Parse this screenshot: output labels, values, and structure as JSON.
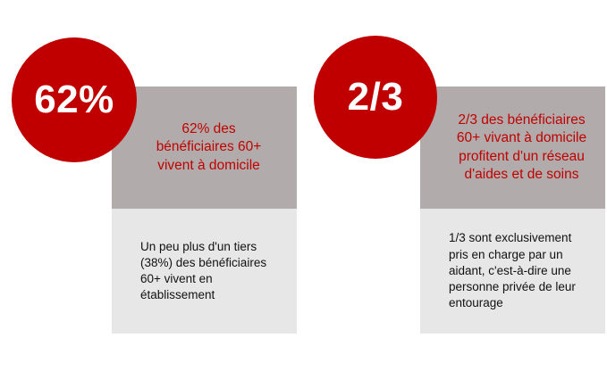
{
  "cards": [
    {
      "badge": "62%",
      "headline": "62% des bénéficiaires 60+ vivent à domicile",
      "detail": "Un peu plus d'un tiers (38%) des bénéficiaires 60+ vivent en établissement"
    },
    {
      "badge": "2/3",
      "headline": "2/3 des bénéficiaires 60+ vivant à domicile profitent d'un réseau d'aides et de soins",
      "detail": "1/3 sont exclusivement pris en charge par un aidant, c'est-à-dire une personne privée de leur entourage"
    }
  ],
  "colors": {
    "accent": "#c00000",
    "panel_top": "#b1acab",
    "panel_bottom": "#e8e7e7"
  }
}
